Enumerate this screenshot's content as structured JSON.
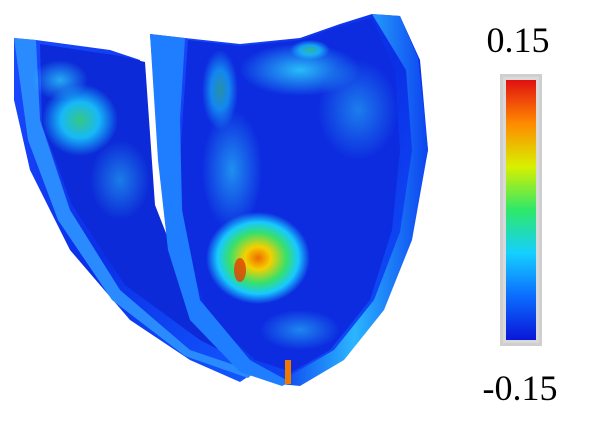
{
  "colorbar": {
    "max_label": "0.15",
    "min_label": "-0.15",
    "max_value": 0.15,
    "min_value": -0.15,
    "colormap": [
      "#0a16d8",
      "#0b6bff",
      "#15cfff",
      "#2ee86a",
      "#d8f000",
      "#ff8a00",
      "#e01010"
    ]
  }
}
